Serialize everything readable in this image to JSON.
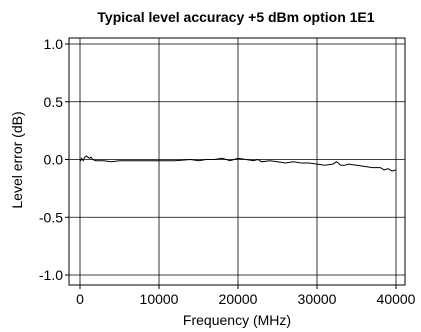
{
  "chart_data": {
    "type": "line",
    "title": "Typical level accuracy +5 dBm option 1E1",
    "xlabel": "Frequency (MHz)",
    "ylabel": "Level error (dB)",
    "xlim": [
      0,
      40000
    ],
    "ylim": [
      -1.0,
      1.0
    ],
    "x_ticks": [
      0,
      10000,
      20000,
      30000,
      40000
    ],
    "x_tick_labels": [
      "0",
      "10000",
      "20000",
      "30000",
      "40000"
    ],
    "y_ticks": [
      1.0,
      0.5,
      0.0,
      -0.5,
      -1.0
    ],
    "y_tick_labels": [
      "1.0",
      "0.5",
      "0.0",
      "-0.5",
      "-1.0"
    ],
    "grid": true,
    "series": [
      {
        "color": "#000000",
        "x": [
          0,
          200,
          400,
          600,
          800,
          1000,
          1200,
          1400,
          1600,
          2000,
          3000,
          4000,
          5000,
          6000,
          8000,
          10000,
          12000,
          14000,
          15000,
          16000,
          17000,
          18000,
          19000,
          20000,
          21000,
          22000,
          22500,
          23000,
          24000,
          25000,
          26000,
          27000,
          28000,
          29000,
          30000,
          31000,
          32000,
          32500,
          33000,
          33500,
          34000,
          35000,
          36000,
          37000,
          38000,
          38500,
          39000,
          39500,
          40000
        ],
        "y": [
          -0.02,
          0.01,
          -0.01,
          0.02,
          0.03,
          0.02,
          0.01,
          0.02,
          0.0,
          -0.01,
          -0.01,
          -0.02,
          -0.01,
          -0.01,
          -0.01,
          -0.01,
          -0.01,
          0.0,
          -0.01,
          0.0,
          0.0,
          0.01,
          -0.01,
          0.01,
          0.0,
          -0.01,
          0.0,
          -0.02,
          -0.01,
          -0.02,
          -0.03,
          -0.02,
          -0.03,
          -0.03,
          -0.04,
          -0.05,
          -0.04,
          -0.02,
          -0.05,
          -0.05,
          -0.04,
          -0.05,
          -0.06,
          -0.07,
          -0.07,
          -0.09,
          -0.08,
          -0.1,
          -0.09
        ]
      }
    ]
  }
}
